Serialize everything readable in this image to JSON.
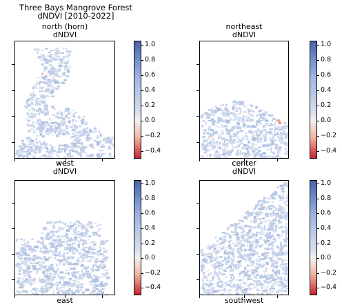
{
  "figure": {
    "title_line1": "Three Bays Mangrove Forest",
    "title_line2": "dNDVI [2010-2022]"
  },
  "colorbar": {
    "ticks": [
      1.0,
      0.8,
      0.6,
      0.4,
      0.2,
      0.0,
      -0.2,
      -0.4
    ],
    "tick_labels": [
      "1.0",
      "0.8",
      "0.6",
      "0.4",
      "0.2",
      "0.0",
      "−0.2",
      "−0.4"
    ],
    "vmin": -0.5,
    "vmax": 1.05,
    "colormap": "coolwarm_r",
    "colors": {
      "high": "#4a63a9",
      "mid": "#f2f1f1",
      "low": "#c42634"
    }
  },
  "panels": [
    {
      "id": "north",
      "title_line1": "north (horn)",
      "title_line2": "dNDVI",
      "bottom_label": "west"
    },
    {
      "id": "northeast",
      "title_line1": "northeast",
      "title_line2": "dNDVI",
      "bottom_label": "center"
    },
    {
      "id": "west",
      "title_line1": "west",
      "title_line2": "dNDVI",
      "bottom_label": "east"
    },
    {
      "id": "center",
      "title_line1": "center",
      "title_line2": "dNDVI",
      "bottom_label": "southwest"
    }
  ],
  "chart_data": {
    "type": "heatmap",
    "panel_count": 4,
    "value_range": [
      -0.5,
      1.05
    ],
    "dominant_value_approx": 0.3
  }
}
